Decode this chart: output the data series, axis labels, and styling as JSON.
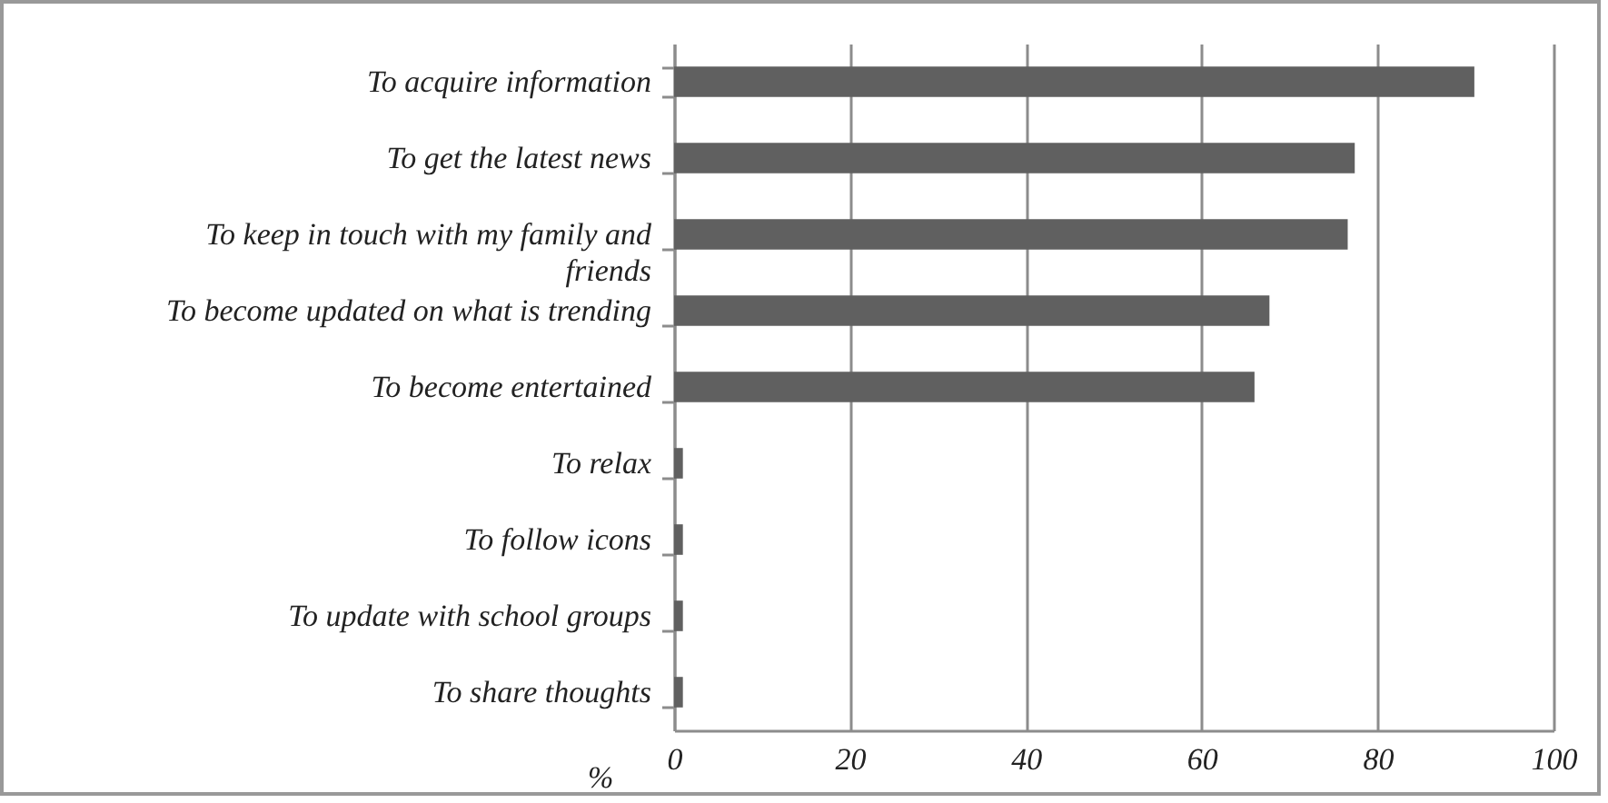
{
  "chart_data": {
    "type": "bar",
    "orientation": "horizontal",
    "xlabel": "%",
    "categories": [
      "To acquire information",
      "To get the latest news",
      "To keep in touch with my family and friends",
      "To become updated on what is trending",
      "To become entertained",
      "To relax",
      "To follow icons",
      "To update with school groups",
      "To share thoughts"
    ],
    "values": [
      91.0,
      77.4,
      76.6,
      67.7,
      66.0,
      1,
      1,
      1,
      1
    ],
    "color": "#606060",
    "xlim": [
      0,
      100
    ],
    "xticks": [
      0,
      20,
      40,
      60,
      80,
      100
    ],
    "grid": "x"
  }
}
